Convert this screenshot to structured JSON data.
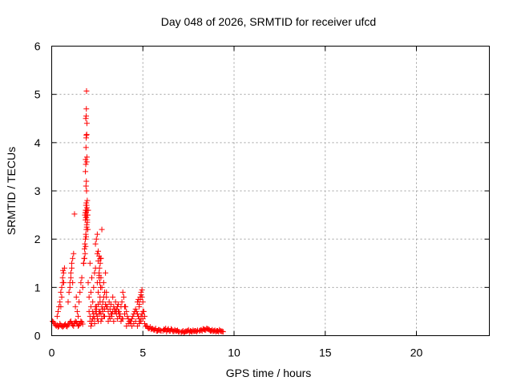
{
  "chart_data": {
    "type": "scatter",
    "title": "Day 048 of 2026, SRMTID for receiver ufcd",
    "xlabel": "GPS time / hours",
    "ylabel": "SRMTID / TECUs",
    "xlim": [
      0,
      24
    ],
    "ylim": [
      0,
      6
    ],
    "xticks": [
      0,
      5,
      10,
      15,
      20
    ],
    "yticks": [
      0,
      1,
      2,
      3,
      4,
      5,
      6
    ],
    "grid": true,
    "marker": "plus",
    "color": "#ff0000",
    "series": [
      {
        "name": "ufcd",
        "x": [
          0.05,
          0.1,
          0.15,
          0.2,
          0.25,
          0.3,
          0.35,
          0.4,
          0.45,
          0.5,
          0.55,
          0.6,
          0.65,
          0.7,
          0.75,
          0.8,
          0.85,
          0.9,
          0.95,
          1.0,
          1.05,
          1.1,
          1.15,
          1.2,
          1.25,
          1.3,
          1.35,
          1.4,
          1.45,
          1.5,
          1.55,
          1.6,
          1.65,
          1.7,
          0.3,
          0.35,
          0.4,
          0.45,
          0.5,
          0.55,
          0.6,
          0.65,
          0.7,
          0.5,
          0.55,
          0.6,
          0.62,
          0.66,
          0.9,
          0.95,
          1.0,
          1.05,
          1.1,
          1.15,
          1.2,
          1.0,
          1.05,
          1.1,
          1.15,
          1.3,
          1.35,
          1.4,
          1.45,
          1.5,
          1.55,
          1.6,
          1.65,
          1.7,
          1.75,
          1.75,
          1.78,
          1.8,
          1.82,
          1.85,
          1.87,
          1.9,
          1.92,
          1.95,
          1.97,
          2.0,
          1.8,
          1.83,
          1.86,
          1.89,
          1.92,
          1.95,
          1.98,
          1.82,
          1.84,
          1.86,
          1.88,
          1.9,
          1.85,
          1.87,
          1.89,
          1.91,
          1.93,
          1.95,
          1.9,
          1.92,
          1.94,
          1.88,
          1.9,
          1.92,
          1.86,
          1.88,
          1.9,
          1.92,
          1.87,
          1.89,
          1.9,
          1.91,
          1.93,
          1.85,
          1.87,
          1.89,
          1.91,
          1.93,
          1.95,
          1.25,
          2.0,
          2.05,
          2.1,
          2.15,
          2.2,
          2.25,
          2.3,
          2.35,
          2.4,
          2.45,
          2.5,
          2.55,
          2.6,
          2.65,
          2.7,
          2.75,
          2.8,
          2.85,
          2.9,
          2.95,
          3.0,
          2.05,
          2.1,
          2.15,
          2.2,
          2.25,
          2.3,
          2.35,
          2.4,
          2.45,
          2.5,
          2.55,
          2.6,
          2.65,
          2.7,
          2.75,
          2.8,
          2.85,
          2.9,
          2.95,
          3.0,
          2.1,
          2.2,
          2.3,
          2.4,
          2.5,
          2.6,
          2.7,
          2.8,
          2.9,
          3.0,
          2.15,
          2.25,
          2.35,
          2.45,
          2.55,
          2.65,
          2.75,
          2.85,
          2.4,
          2.45,
          2.5,
          2.55,
          2.6,
          2.65,
          2.7,
          2.75,
          2.5,
          2.55,
          2.6,
          2.62,
          2.66,
          2.7,
          2.6,
          2.64,
          2.68,
          3.05,
          3.1,
          3.15,
          3.2,
          3.25,
          3.3,
          3.35,
          3.4,
          3.45,
          3.5,
          3.55,
          3.6,
          3.65,
          3.7,
          3.75,
          3.8,
          3.85,
          3.9,
          3.95,
          4.0,
          3.1,
          3.2,
          3.3,
          3.4,
          3.5,
          3.6,
          3.7,
          3.8,
          3.9,
          4.0,
          3.15,
          3.25,
          3.35,
          3.45,
          3.55,
          3.65,
          3.75,
          3.85,
          4.05,
          4.1,
          4.15,
          4.2,
          4.25,
          4.3,
          4.35,
          4.4,
          4.45,
          4.5,
          4.55,
          4.6,
          4.65,
          4.7,
          4.75,
          4.8,
          4.85,
          4.9,
          4.95,
          5.0,
          4.1,
          4.2,
          4.3,
          4.4,
          4.5,
          4.6,
          4.7,
          4.8,
          4.9,
          5.0,
          4.7,
          4.75,
          4.8,
          4.85,
          4.9,
          4.95,
          5.0,
          5.05,
          5.1,
          4.8,
          4.85,
          4.9,
          4.95,
          5.1,
          5.2,
          5.3,
          5.4,
          5.5,
          5.6,
          5.7,
          5.8,
          5.9,
          6.0,
          5.15,
          5.25,
          5.35,
          5.45,
          5.55,
          5.65,
          5.75,
          5.85,
          5.95,
          6.1,
          6.2,
          6.3,
          6.4,
          6.5,
          6.6,
          6.7,
          6.8,
          6.9,
          7.0,
          6.15,
          6.25,
          6.35,
          6.45,
          6.55,
          6.65,
          6.75,
          6.85,
          6.95,
          7.1,
          7.2,
          7.3,
          7.4,
          7.5,
          7.6,
          7.7,
          7.8,
          7.9,
          8.0,
          7.15,
          7.25,
          7.35,
          7.45,
          7.55,
          7.65,
          7.75,
          7.85,
          7.95,
          8.1,
          8.2,
          8.3,
          8.4,
          8.5,
          8.6,
          8.7,
          8.8,
          8.9,
          9.0,
          9.1,
          9.2,
          9.3,
          9.4,
          8.15,
          8.25,
          8.35,
          8.45,
          8.55,
          8.65,
          8.75,
          8.85,
          8.95,
          9.05,
          9.15,
          9.25,
          9.35
        ],
        "y": [
          0.3,
          0.28,
          0.25,
          0.22,
          0.2,
          0.22,
          0.18,
          0.2,
          0.25,
          0.22,
          0.2,
          0.18,
          0.2,
          0.22,
          0.24,
          0.2,
          0.19,
          0.22,
          0.25,
          0.28,
          0.3,
          0.25,
          0.22,
          0.2,
          0.26,
          0.3,
          0.28,
          0.25,
          0.2,
          0.22,
          0.25,
          0.3,
          0.28,
          0.24,
          0.4,
          0.5,
          0.6,
          0.7,
          0.9,
          1.0,
          1.2,
          1.3,
          1.4,
          0.6,
          0.8,
          1.1,
          1.35,
          1.1,
          0.7,
          0.9,
          1.1,
          1.2,
          1.4,
          1.6,
          1.7,
          1.0,
          1.3,
          1.5,
          1.1,
          0.6,
          0.8,
          0.5,
          0.4,
          0.7,
          0.9,
          1.1,
          1.2,
          1.0,
          1.5,
          1.5,
          1.6,
          1.8,
          1.9,
          2.0,
          2.1,
          2.2,
          2.3,
          2.4,
          2.5,
          2.6,
          1.6,
          1.7,
          1.85,
          2.05,
          2.25,
          2.35,
          2.2,
          2.5,
          2.55,
          2.6,
          2.7,
          2.75,
          2.4,
          2.45,
          2.55,
          2.6,
          2.65,
          2.5,
          2.45,
          2.7,
          2.6,
          3.1,
          3.2,
          3.6,
          3.65,
          3.9,
          4.15,
          4.17,
          4.5,
          4.55,
          4.7,
          5.07,
          4.4,
          3.4,
          3.55,
          4.1,
          3.0,
          3.7,
          2.8,
          2.52,
          1.1,
          0.8,
          1.5,
          0.9,
          1.2,
          0.7,
          1.0,
          1.3,
          1.4,
          0.6,
          1.1,
          0.9,
          1.2,
          0.8,
          1.6,
          1.0,
          0.7,
          1.1,
          0.9,
          1.3,
          0.8,
          0.5,
          0.4,
          0.6,
          0.3,
          0.5,
          0.45,
          0.35,
          0.6,
          0.55,
          0.4,
          0.65,
          0.5,
          0.7,
          0.45,
          0.6,
          0.5,
          0.8,
          0.55,
          0.65,
          0.9,
          0.3,
          0.25,
          0.4,
          0.5,
          0.35,
          0.45,
          0.3,
          0.55,
          0.4,
          0.6,
          0.2,
          0.35,
          0.25,
          0.45,
          0.3,
          0.5,
          0.35,
          0.4,
          1.9,
          2.0,
          1.7,
          1.75,
          1.65,
          1.6,
          1.6,
          2.2,
          2.1,
          1.55,
          1.3,
          1.4,
          1.5,
          1.2,
          1.25,
          1.1,
          1.0,
          0.6,
          0.5,
          0.7,
          0.55,
          0.65,
          0.45,
          0.8,
          0.6,
          0.5,
          0.7,
          0.55,
          0.6,
          0.65,
          0.5,
          0.45,
          0.6,
          0.7,
          0.9,
          0.8,
          0.6,
          0.3,
          0.35,
          0.4,
          0.3,
          0.5,
          0.35,
          0.4,
          0.3,
          0.35,
          0.45,
          0.4,
          0.45,
          0.5,
          0.55,
          0.45,
          0.5,
          0.4,
          0.35,
          0.6,
          0.5,
          0.4,
          0.35,
          0.3,
          0.25,
          0.3,
          0.35,
          0.4,
          0.45,
          0.5,
          0.55,
          0.5,
          0.45,
          0.4,
          0.35,
          0.3,
          0.4,
          0.45,
          0.5,
          0.2,
          0.25,
          0.3,
          0.2,
          0.25,
          0.3,
          0.2,
          0.25,
          0.3,
          0.35,
          0.7,
          0.75,
          0.6,
          0.8,
          0.9,
          0.95,
          0.7,
          0.5,
          0.4,
          0.65,
          0.75,
          0.85,
          0.8,
          0.25,
          0.2,
          0.15,
          0.18,
          0.15,
          0.12,
          0.15,
          0.1,
          0.12,
          0.1,
          0.2,
          0.18,
          0.15,
          0.13,
          0.14,
          0.12,
          0.1,
          0.12,
          0.11,
          0.1,
          0.12,
          0.08,
          0.14,
          0.1,
          0.12,
          0.09,
          0.1,
          0.11,
          0.08,
          0.13,
          0.15,
          0.12,
          0.1,
          0.14,
          0.09,
          0.12,
          0.1,
          0.08,
          0.07,
          0.1,
          0.08,
          0.09,
          0.12,
          0.1,
          0.08,
          0.09,
          0.1,
          0.11,
          0.08,
          0.06,
          0.09,
          0.1,
          0.07,
          0.09,
          0.11,
          0.1,
          0.08,
          0.1,
          0.12,
          0.14,
          0.12,
          0.15,
          0.13,
          0.1,
          0.12,
          0.1,
          0.08,
          0.1,
          0.12,
          0.09,
          0.08,
          0.11,
          0.1,
          0.13,
          0.12,
          0.14,
          0.12,
          0.1,
          0.09,
          0.11,
          0.1,
          0.08,
          0.1,
          0.09
        ]
      }
    ]
  }
}
